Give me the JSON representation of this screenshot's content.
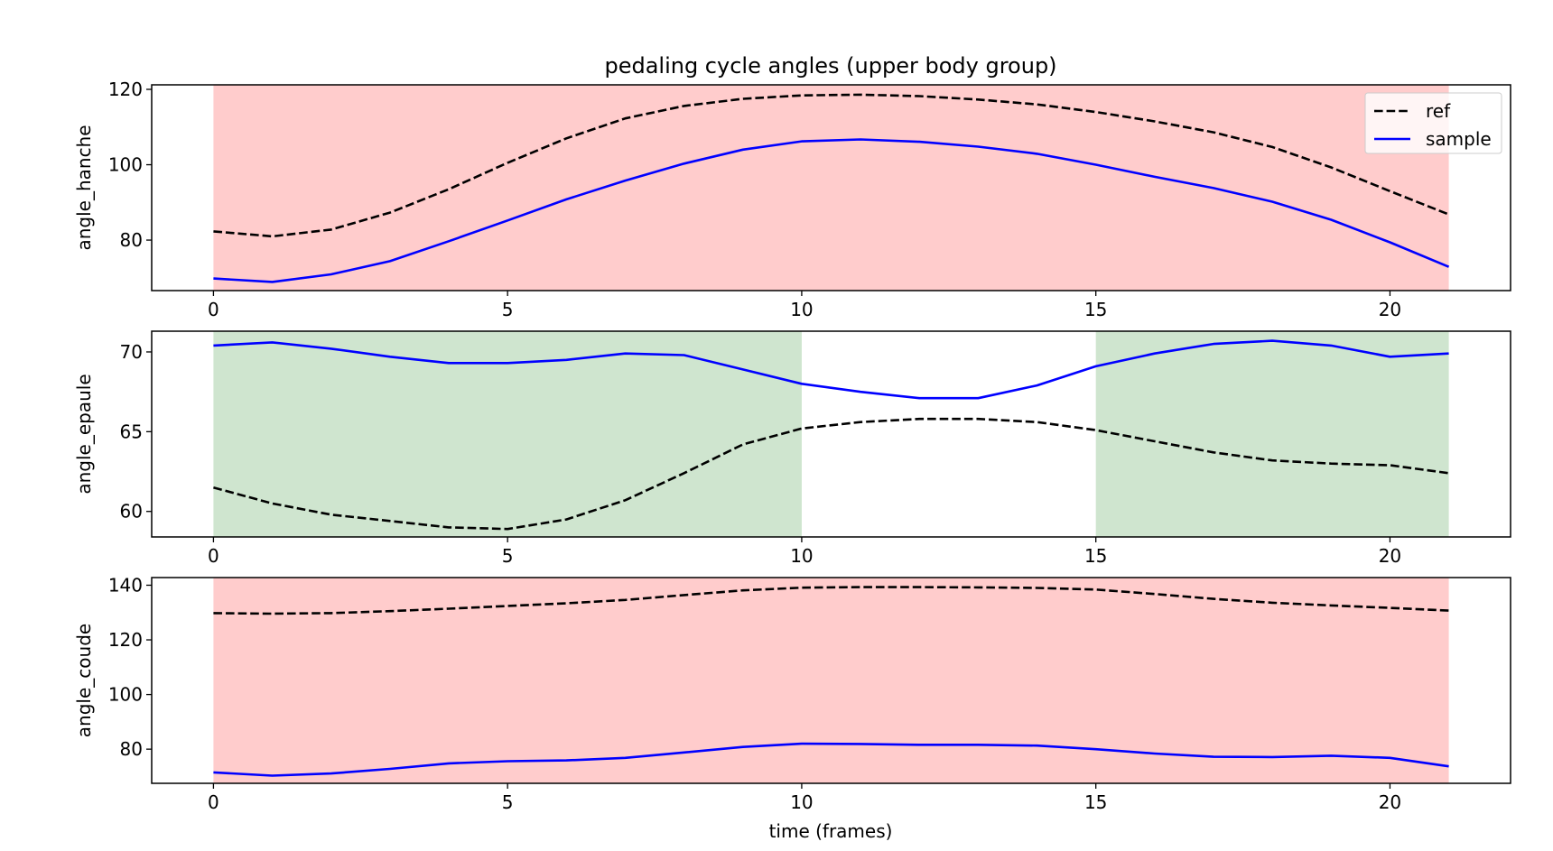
{
  "chart_data": {
    "type": "line",
    "title": "pedaling cycle angles (upper body group)",
    "xlabel": "time (frames)",
    "colors": {
      "ref": "#000000",
      "sample": "#0000ff",
      "bad_region": "#ffcccc",
      "good_region": "#cfe5cf"
    },
    "legend": {
      "placement": "top-right",
      "entries": [
        "ref",
        "sample"
      ]
    },
    "grid": false,
    "x": [
      0,
      1,
      2,
      3,
      4,
      5,
      6,
      7,
      8,
      9,
      10,
      11,
      12,
      13,
      14,
      15,
      16,
      17,
      18,
      19,
      20,
      21
    ],
    "xlim": [
      -1.05,
      22.05
    ],
    "xticks": [
      0,
      5,
      10,
      15,
      20
    ],
    "panels": [
      {
        "ylabel": "angle_hanche",
        "ylim": [
          66.6,
          121.2
        ],
        "yticks": [
          80,
          100,
          120
        ],
        "shading": [
          {
            "from": 0,
            "to": 21,
            "status": "bad"
          }
        ],
        "series": [
          {
            "name": "ref",
            "style": "dashed",
            "values": [
              82.3,
              81.0,
              82.8,
              87.3,
              93.5,
              100.5,
              107.0,
              112.3,
              115.6,
              117.5,
              118.4,
              118.6,
              118.2,
              117.3,
              116.0,
              114.0,
              111.5,
              108.6,
              104.7,
              99.3,
              93.0,
              86.8
            ]
          },
          {
            "name": "sample",
            "style": "solid",
            "values": [
              69.8,
              68.9,
              70.9,
              74.4,
              79.7,
              85.2,
              90.8,
              95.8,
              100.3,
              104.0,
              106.2,
              106.7,
              106.1,
              104.8,
              102.9,
              100.0,
              96.8,
              93.8,
              90.2,
              85.4,
              79.4,
              72.9
            ]
          }
        ]
      },
      {
        "ylabel": "angle_epaule",
        "ylim": [
          58.4,
          71.3
        ],
        "yticks": [
          60,
          65,
          70
        ],
        "shading": [
          {
            "from": 0,
            "to": 10,
            "status": "good"
          },
          {
            "from": 15,
            "to": 21,
            "status": "good"
          }
        ],
        "series": [
          {
            "name": "ref",
            "style": "dashed",
            "values": [
              61.5,
              60.5,
              59.8,
              59.4,
              59.0,
              58.9,
              59.5,
              60.7,
              62.4,
              64.2,
              65.2,
              65.6,
              65.8,
              65.8,
              65.6,
              65.1,
              64.4,
              63.7,
              63.2,
              63.0,
              62.9,
              62.4
            ]
          },
          {
            "name": "sample",
            "style": "solid",
            "values": [
              70.4,
              70.6,
              70.2,
              69.7,
              69.3,
              69.3,
              69.5,
              69.9,
              69.8,
              68.9,
              68.0,
              67.5,
              67.1,
              67.1,
              67.9,
              69.1,
              69.9,
              70.5,
              70.7,
              70.4,
              69.7,
              69.9
            ]
          }
        ]
      },
      {
        "ylabel": "angle_coude",
        "ylim": [
          67.5,
          142.8
        ],
        "yticks": [
          80,
          100,
          120,
          140
        ],
        "shading": [
          {
            "from": 0,
            "to": 21,
            "status": "bad"
          }
        ],
        "series": [
          {
            "name": "ref",
            "style": "dashed",
            "values": [
              129.8,
              129.6,
              129.8,
              130.5,
              131.4,
              132.4,
              133.4,
              134.6,
              136.4,
              138.1,
              139.1,
              139.3,
              139.3,
              139.2,
              139.0,
              138.4,
              136.8,
              135.0,
              133.6,
              132.6,
              131.7,
              130.7
            ]
          },
          {
            "name": "sample",
            "style": "solid",
            "values": [
              71.5,
              70.3,
              71.1,
              72.8,
              74.8,
              75.6,
              75.9,
              76.8,
              78.8,
              80.8,
              82.0,
              81.9,
              81.6,
              81.6,
              81.3,
              80.0,
              78.4,
              77.2,
              77.1,
              77.6,
              76.8,
              73.7
            ]
          }
        ]
      }
    ]
  }
}
